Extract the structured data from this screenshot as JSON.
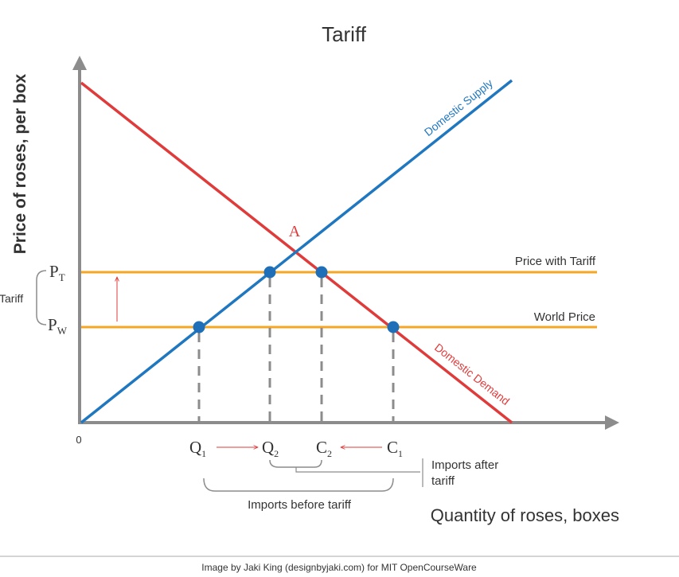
{
  "chart_data": {
    "type": "line",
    "title": "Tariff",
    "xlabel": "Quantity of roses, boxes",
    "ylabel": "Price of roses, per box",
    "origin_label": "0",
    "series": [
      {
        "name": "Domestic Supply",
        "color": "#1f77c0",
        "kind": "upward-sloping"
      },
      {
        "name": "Domestic Demand",
        "color": "#e03b3b",
        "kind": "downward-sloping"
      },
      {
        "name": "Price with Tariff",
        "color": "#f5a623",
        "kind": "horizontal"
      },
      {
        "name": "World Price",
        "color": "#f5a623",
        "kind": "horizontal"
      }
    ],
    "equilibrium_label": "A",
    "price_labels": {
      "pt_main": "P",
      "pt_sub": "T",
      "pw_main": "P",
      "pw_sub": "W"
    },
    "tariff_label": "Tariff",
    "quantity_labels": [
      {
        "main": "Q",
        "sub": "1"
      },
      {
        "main": "Q",
        "sub": "2"
      },
      {
        "main": "C",
        "sub": "2"
      },
      {
        "main": "C",
        "sub": "1"
      }
    ],
    "annotations": {
      "imports_before": "Imports before tariff",
      "imports_after_line1": "Imports after",
      "imports_after_line2": "tariff"
    },
    "credit": "Image by Jaki King (designbyjaki.com) for MIT OpenCourseWare",
    "colors": {
      "axis": "#8c8c8c",
      "supply": "#1f77c0",
      "demand": "#e03b3b",
      "price": "#f5a623",
      "point": "#1f6fb8",
      "dash": "#8c8c8c",
      "arrow": "#e03b3b",
      "text": "#333333"
    }
  }
}
